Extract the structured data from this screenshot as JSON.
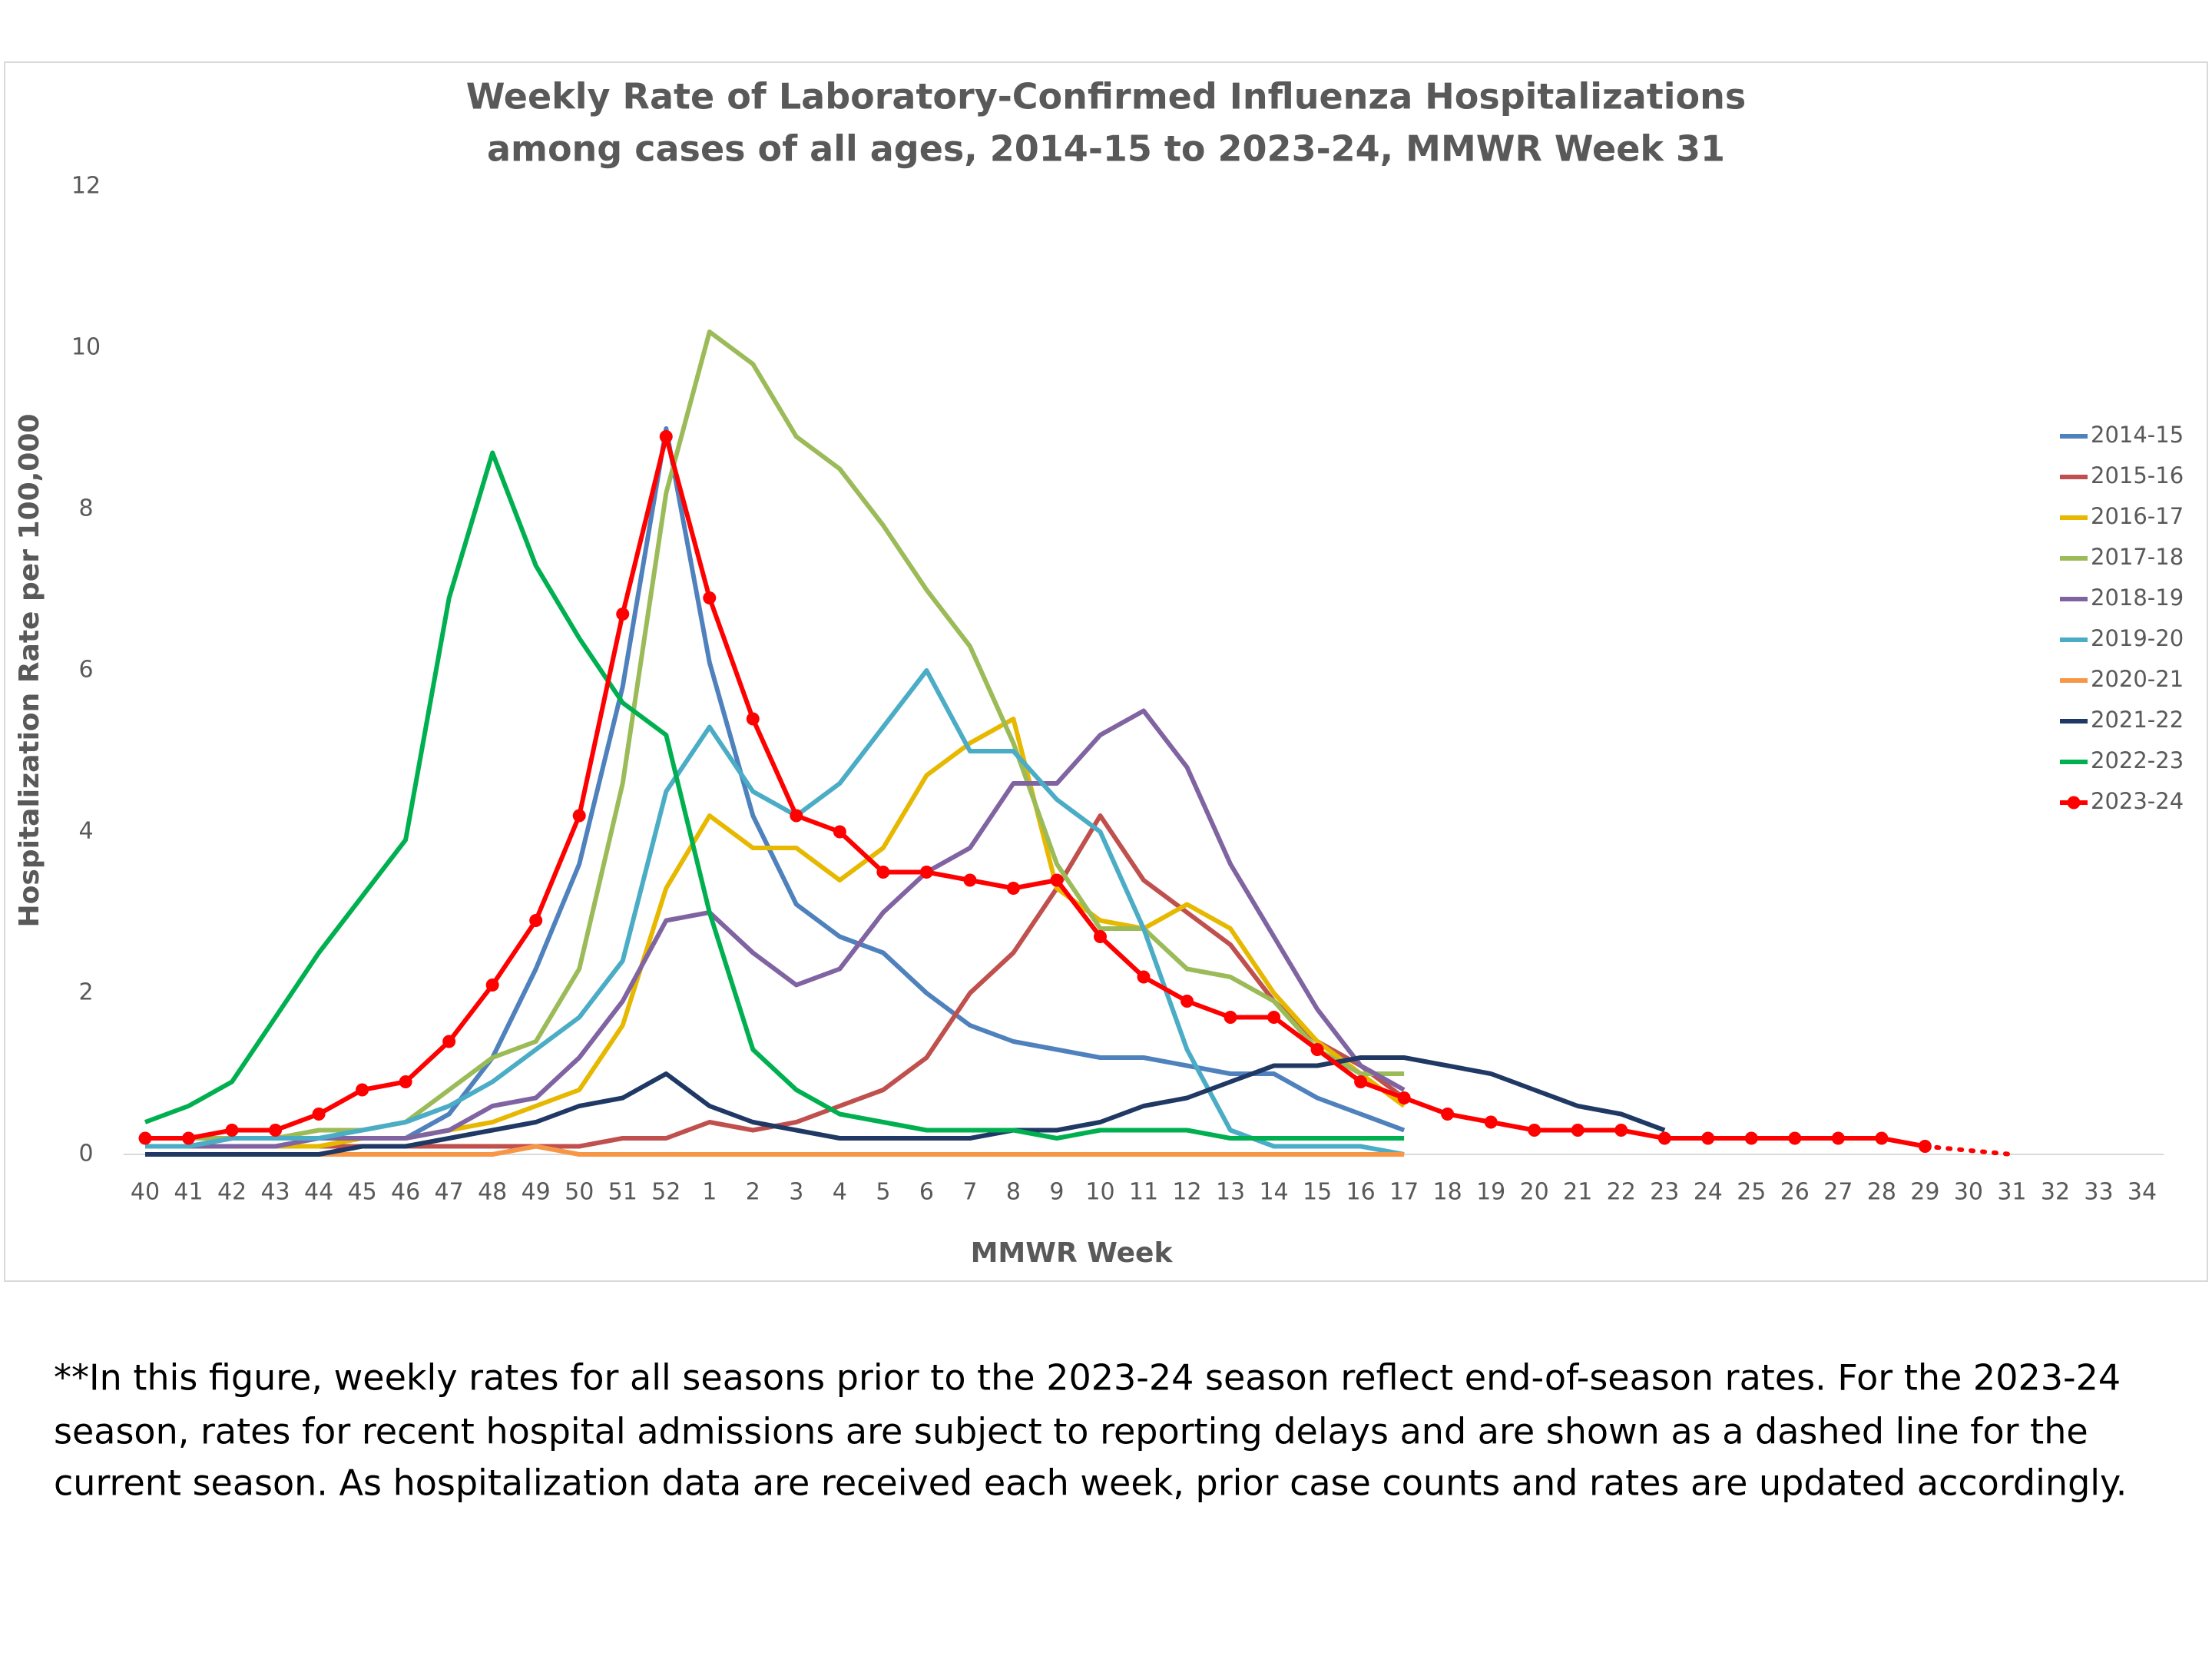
{
  "chart_data": {
    "type": "line",
    "title": [
      "Weekly Rate of Laboratory-Confirmed Influenza Hospitalizations",
      "among cases of all ages, 2014-15 to 2023-24, MMWR Week 31"
    ],
    "x_label": "MMWR Week",
    "y_label": "Hospitalization Rate per 100,000",
    "categories": [
      "40",
      "41",
      "42",
      "43",
      "44",
      "45",
      "46",
      "47",
      "48",
      "49",
      "50",
      "51",
      "52",
      "1",
      "2",
      "3",
      "4",
      "5",
      "6",
      "7",
      "8",
      "9",
      "10",
      "11",
      "12",
      "13",
      "14",
      "15",
      "16",
      "17",
      "18",
      "19",
      "20",
      "21",
      "22",
      "23",
      "24",
      "25",
      "26",
      "27",
      "28",
      "29",
      "30",
      "31",
      "32",
      "33",
      "34"
    ],
    "ylim": [
      0,
      12
    ],
    "yticks": [
      0,
      2,
      4,
      6,
      8,
      10,
      12
    ],
    "legend": "right",
    "series": [
      {
        "name": "2014-15",
        "color": "#4f81bd",
        "values": [
          0.1,
          0.1,
          0.2,
          0.2,
          0.2,
          0.2,
          0.2,
          0.5,
          1.2,
          2.3,
          3.6,
          5.8,
          9.0,
          6.1,
          4.2,
          3.1,
          2.7,
          2.5,
          2.0,
          1.6,
          1.4,
          1.3,
          1.2,
          1.2,
          1.1,
          1.0,
          1.0,
          0.7,
          0.5,
          0.3,
          null,
          null,
          null,
          null,
          null,
          null,
          null,
          null,
          null,
          null,
          null,
          null,
          null,
          null,
          null,
          null,
          null
        ]
      },
      {
        "name": "2015-16",
        "color": "#c0504d",
        "values": [
          0.1,
          0.1,
          0.1,
          0.1,
          0.1,
          0.1,
          0.1,
          0.1,
          0.1,
          0.1,
          0.1,
          0.2,
          0.2,
          0.4,
          0.3,
          0.4,
          0.6,
          0.8,
          1.2,
          2.0,
          2.5,
          3.3,
          4.2,
          3.4,
          3.0,
          2.6,
          1.9,
          1.4,
          1.1,
          0.7,
          null,
          null,
          null,
          null,
          null,
          null,
          null,
          null,
          null,
          null,
          null,
          null,
          null,
          null,
          null,
          null,
          null
        ]
      },
      {
        "name": "2016-17",
        "color": "#e6b800",
        "values": [
          0.1,
          0.1,
          0.1,
          0.1,
          0.1,
          0.2,
          0.2,
          0.3,
          0.4,
          0.6,
          0.8,
          1.6,
          3.3,
          4.2,
          3.8,
          3.8,
          3.4,
          3.8,
          4.7,
          5.1,
          5.4,
          3.3,
          2.9,
          2.8,
          3.1,
          2.8,
          2.0,
          1.4,
          1.0,
          0.6,
          null,
          null,
          null,
          null,
          null,
          null,
          null,
          null,
          null,
          null,
          null,
          null,
          null,
          null,
          null,
          null,
          null
        ]
      },
      {
        "name": "2017-18",
        "color": "#9bbb59",
        "values": [
          0.2,
          0.2,
          0.2,
          0.2,
          0.3,
          0.3,
          0.4,
          0.8,
          1.2,
          1.4,
          2.3,
          4.6,
          8.2,
          10.2,
          9.8,
          8.9,
          8.5,
          7.8,
          7.0,
          6.3,
          5.1,
          3.6,
          2.8,
          2.8,
          2.3,
          2.2,
          1.9,
          1.3,
          1.0,
          1.0,
          null,
          null,
          null,
          null,
          null,
          null,
          null,
          null,
          null,
          null,
          null,
          null,
          null,
          null,
          null,
          null,
          null
        ]
      },
      {
        "name": "2018-19",
        "color": "#8064a2",
        "values": [
          0.1,
          0.1,
          0.1,
          0.1,
          0.2,
          0.2,
          0.2,
          0.3,
          0.6,
          0.7,
          1.2,
          1.9,
          2.9,
          3.0,
          2.5,
          2.1,
          2.3,
          3.0,
          3.5,
          3.8,
          4.6,
          4.6,
          5.2,
          5.5,
          4.8,
          3.6,
          2.7,
          1.8,
          1.1,
          0.8,
          null,
          null,
          null,
          null,
          null,
          null,
          null,
          null,
          null,
          null,
          null,
          null,
          null,
          null,
          null,
          null,
          null
        ]
      },
      {
        "name": "2019-20",
        "color": "#4bacc6",
        "values": [
          0.1,
          0.1,
          0.2,
          0.2,
          0.2,
          0.3,
          0.4,
          0.6,
          0.9,
          1.3,
          1.7,
          2.4,
          4.5,
          5.3,
          4.5,
          4.2,
          4.6,
          5.3,
          6.0,
          5.0,
          5.0,
          4.4,
          4.0,
          2.8,
          1.3,
          0.3,
          0.1,
          0.1,
          0.1,
          0.0,
          null,
          null,
          null,
          null,
          null,
          null,
          null,
          null,
          null,
          null,
          null,
          null,
          null,
          null,
          null,
          null,
          null
        ]
      },
      {
        "name": "2020-21",
        "color": "#f79646",
        "values": [
          0,
          0,
          0,
          0,
          0,
          0,
          0,
          0,
          0,
          0.1,
          0,
          0,
          0,
          0,
          0,
          0,
          0,
          0,
          0,
          0,
          0,
          0,
          0,
          0,
          0,
          0,
          0,
          0,
          0,
          0,
          null,
          null,
          null,
          null,
          null,
          null,
          null,
          null,
          null,
          null,
          null,
          null,
          null,
          null,
          null,
          null,
          null
        ]
      },
      {
        "name": "2021-22",
        "color": "#1f3864",
        "values": [
          0,
          0,
          0,
          0,
          0,
          0.1,
          0.1,
          0.2,
          0.3,
          0.4,
          0.6,
          0.7,
          1.0,
          0.6,
          0.4,
          0.3,
          0.2,
          0.2,
          0.2,
          0.2,
          0.3,
          0.3,
          0.4,
          0.6,
          0.7,
          0.9,
          1.1,
          1.1,
          1.2,
          1.2,
          1.1,
          1.0,
          0.8,
          0.6,
          0.5,
          0.3,
          null,
          null,
          null,
          null,
          null,
          null,
          null,
          null,
          null,
          null,
          null
        ]
      },
      {
        "name": "2022-23",
        "color": "#00b050",
        "values": [
          0.4,
          0.6,
          0.9,
          1.7,
          2.5,
          3.2,
          3.9,
          6.9,
          8.7,
          7.3,
          6.4,
          5.6,
          5.2,
          3.0,
          1.3,
          0.8,
          0.5,
          0.4,
          0.3,
          0.3,
          0.3,
          0.2,
          0.3,
          0.3,
          0.3,
          0.2,
          0.2,
          0.2,
          0.2,
          0.2,
          null,
          null,
          null,
          null,
          null,
          null,
          null,
          null,
          null,
          null,
          null,
          null,
          null,
          null,
          null,
          null,
          null
        ]
      },
      {
        "name": "2023-24",
        "color": "#ff0000",
        "markers": true,
        "dashed_from_category": "29",
        "values": [
          0.2,
          0.2,
          0.3,
          0.3,
          0.5,
          0.8,
          0.9,
          1.4,
          2.1,
          2.9,
          4.2,
          6.7,
          8.9,
          6.9,
          5.4,
          4.2,
          4.0,
          3.5,
          3.5,
          3.4,
          3.3,
          3.4,
          2.7,
          2.2,
          1.9,
          1.7,
          1.7,
          1.3,
          0.9,
          0.7,
          0.5,
          0.4,
          0.3,
          0.3,
          0.3,
          0.2,
          0.2,
          0.2,
          0.2,
          0.2,
          0.2,
          0.1,
          0.05,
          0.0,
          null,
          null,
          null
        ]
      }
    ],
    "footnote": [
      "**In this figure, weekly rates for all seasons prior to the 2023-24 season reflect end-of-season rates. For the 2023-24",
      "season, rates for recent hospital admissions are subject to reporting delays and are shown as a dashed line for the",
      "current season. As hospitalization data are received each week, prior case counts and rates are updated accordingly."
    ]
  }
}
